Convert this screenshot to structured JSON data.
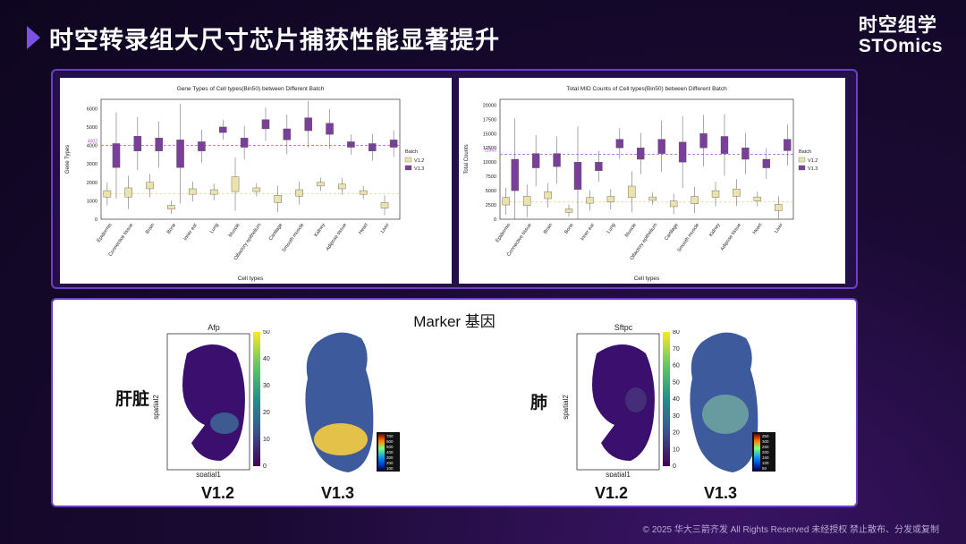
{
  "header": {
    "title": "时空转录组大尺寸芯片捕获性能显著提升",
    "logo_cn": "时空组学",
    "logo_en": "STOmics"
  },
  "colors": {
    "v12": "#ece3ab",
    "v13": "#7a3f98",
    "accent": "#7b52e6",
    "median_v13": "#b052d6"
  },
  "chart_data": [
    {
      "type": "box",
      "title": "Gene Types of Cell types(Bin50) between Different Batch",
      "xlabel": "Cell types",
      "ylabel": "Gene Types",
      "ylim": [
        0,
        6500
      ],
      "yticks": [
        0,
        1000,
        2000,
        3000,
        4000,
        5000,
        6000
      ],
      "ref_line_v13": 4002,
      "ref_line_v13_label": "4002",
      "ref_line_v12": 1400,
      "legend_title": "Batch",
      "legend": [
        "V1.2",
        "V1.3"
      ],
      "categories": [
        "Epidermis",
        "Connective tissue",
        "Brain",
        "Bone",
        "Inner ear",
        "Lung",
        "Muscle",
        "Olfactory epithelium",
        "Cartilage",
        "Smooth muscle",
        "Kidney",
        "Adipose tissue",
        "Heart",
        "Liver"
      ],
      "series": [
        {
          "name": "V1.2",
          "boxes": [
            [
              1200,
              1550
            ],
            [
              1200,
              1700
            ],
            [
              1650,
              2000
            ],
            [
              550,
              750
            ],
            [
              1350,
              1650
            ],
            [
              1350,
              1600
            ],
            [
              1500,
              2300
            ],
            [
              1500,
              1700
            ],
            [
              900,
              1300
            ],
            [
              1250,
              1600
            ],
            [
              1800,
              2000
            ],
            [
              1650,
              1900
            ],
            [
              1350,
              1550
            ],
            [
              600,
              900
            ]
          ]
        },
        {
          "name": "V1.3",
          "boxes": [
            [
              2800,
              4100
            ],
            [
              3700,
              4500
            ],
            [
              3700,
              4400
            ],
            [
              2800,
              4300
            ],
            [
              3700,
              4200
            ],
            [
              4700,
              5000
            ],
            [
              3900,
              4400
            ],
            [
              4900,
              5400
            ],
            [
              4300,
              4900
            ],
            [
              4800,
              5500
            ],
            [
              4600,
              5200
            ],
            [
              3900,
              4200
            ],
            [
              3700,
              4100
            ],
            [
              3900,
              4300
            ]
          ]
        }
      ]
    },
    {
      "type": "box",
      "title": "Total MID Counts of Cell types(Bin50) between Different Batch",
      "xlabel": "Cell types",
      "ylabel": "Total Counts",
      "ylim": [
        0,
        21000
      ],
      "yticks": [
        0,
        2500,
        5000,
        7500,
        10000,
        12500,
        15000,
        17500,
        20000
      ],
      "ref_line_v13": 11343,
      "ref_line_v13_label": "11343",
      "ref_line_v12": 3000,
      "legend_title": "Batch",
      "legend": [
        "V1.2",
        "V1.3"
      ],
      "categories": [
        "Epidermis",
        "Connective tissue",
        "Brain",
        "Bone",
        "Inner ear",
        "Lung",
        "Muscle",
        "Olfactory epithelium",
        "Cartilage",
        "Smooth muscle",
        "Kidney",
        "Adipose tissue",
        "Heart",
        "Liver"
      ],
      "series": [
        {
          "name": "V1.2",
          "boxes": [
            [
              2500,
              3800
            ],
            [
              2400,
              4000
            ],
            [
              3600,
              4800
            ],
            [
              1200,
              1800
            ],
            [
              2800,
              3800
            ],
            [
              3000,
              4000
            ],
            [
              3800,
              5800
            ],
            [
              3300,
              3900
            ],
            [
              2200,
              3200
            ],
            [
              2700,
              4000
            ],
            [
              3800,
              5000
            ],
            [
              4000,
              5300
            ],
            [
              3200,
              3900
            ],
            [
              1500,
              2600
            ]
          ]
        },
        {
          "name": "V1.3",
          "boxes": [
            [
              5000,
              10500
            ],
            [
              9000,
              11500
            ],
            [
              9200,
              11500
            ],
            [
              5200,
              10000
            ],
            [
              8500,
              10000
            ],
            [
              12500,
              14000
            ],
            [
              10500,
              12500
            ],
            [
              11500,
              14000
            ],
            [
              10000,
              13500
            ],
            [
              12500,
              15000
            ],
            [
              11500,
              14500
            ],
            [
              10500,
              12500
            ],
            [
              9000,
              10500
            ],
            [
              12000,
              14000
            ]
          ]
        }
      ]
    }
  ],
  "marker": {
    "title": "Marker 基因",
    "liver": {
      "organ": "肝脏",
      "gene": "Afp",
      "xlabel": "spatial1",
      "ylabel": "spatial2",
      "cbar": [
        "0",
        "10",
        "20",
        "30",
        "40",
        "50"
      ],
      "cbar_v13": [
        "700",
        "600",
        "500",
        "400",
        "300",
        "200",
        "100"
      ],
      "v12": "V1.2",
      "v13": "V1.3"
    },
    "lung": {
      "organ": "肺",
      "gene": "Sftpc",
      "xlabel": "spatial1",
      "ylabel": "spatial2",
      "cbar": [
        "0",
        "10",
        "20",
        "30",
        "40",
        "50",
        "60",
        "70",
        "80"
      ],
      "cbar_v13": [
        "350",
        "300",
        "250",
        "200",
        "150",
        "100",
        "50"
      ],
      "v12": "V1.2",
      "v13": "V1.3"
    }
  },
  "footer": "© 2025 华大三箭齐发 All Rights Reserved 未经授权  禁止散布、分发或复制"
}
